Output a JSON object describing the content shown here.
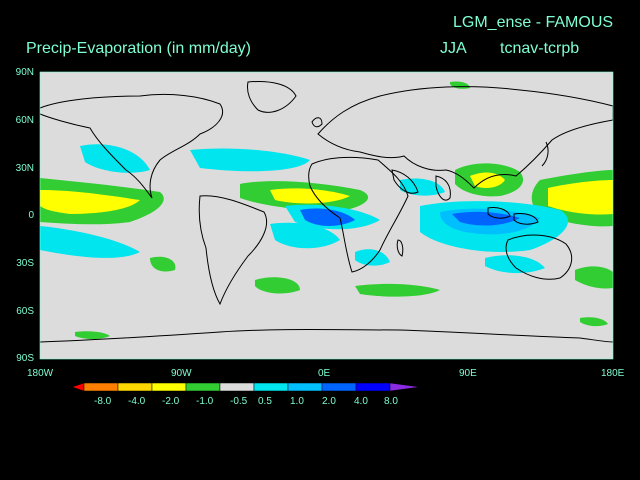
{
  "header": {
    "model": "LGM_ense - FAMOUS",
    "variable": "Precip-Evaporation (in mm/day)",
    "season": "JJA",
    "experiment": "tcnav-tcrpb"
  },
  "axes": {
    "lat_labels": [
      "90N",
      "60N",
      "30N",
      "0",
      "30S",
      "60S",
      "90S"
    ],
    "lon_labels": [
      "180W",
      "90W",
      "0E",
      "90E",
      "180E"
    ]
  },
  "colorbar": {
    "labels": [
      "-8.0",
      "-4.0",
      "-2.0",
      "-1.0",
      "-0.5",
      "0.5",
      "1.0",
      "2.0",
      "4.0",
      "8.0"
    ],
    "colors": [
      "#ff0000",
      "#ff8000",
      "#ffd700",
      "#ffff00",
      "#32cd32",
      "#dcdcdc",
      "#00e5ee",
      "#00bfff",
      "#0064ff",
      "#0000ff",
      "#8a2be2"
    ]
  },
  "colors": {
    "label": "#7fffd4",
    "background": "#000000",
    "neutral": "#dcdcdc",
    "coast": "#000000"
  }
}
